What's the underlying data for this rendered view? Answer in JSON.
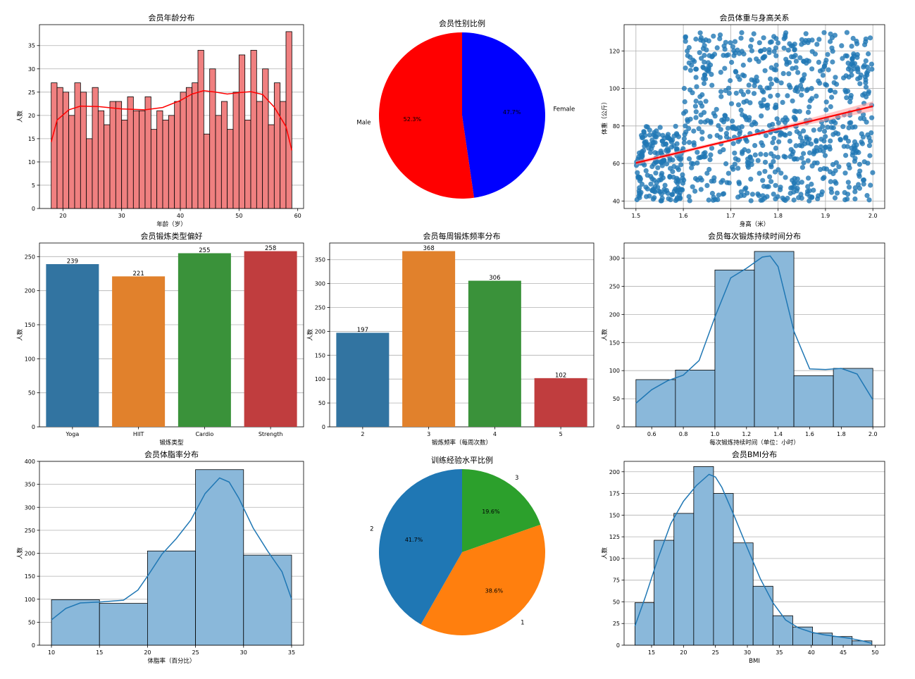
{
  "chart_data": [
    {
      "id": "age",
      "type": "histogram",
      "title": "会员年龄分布",
      "xlabel": "年龄（岁）",
      "ylabel": "人数",
      "xlim": [
        16,
        61
      ],
      "ylim": [
        0,
        39.5
      ],
      "xticks": [
        20,
        30,
        40,
        50,
        60
      ],
      "yticks": [
        0,
        5,
        10,
        15,
        20,
        25,
        30,
        35
      ],
      "grid": "y",
      "bar_color": "#f08080",
      "kde_color": "#ff0000",
      "bins": [
        [
          18,
          19,
          27
        ],
        [
          19,
          20,
          26
        ],
        [
          20,
          21,
          25
        ],
        [
          21,
          22,
          20
        ],
        [
          22,
          23,
          27
        ],
        [
          23,
          24,
          25
        ],
        [
          24,
          25,
          15
        ],
        [
          25,
          26,
          26
        ],
        [
          26,
          27,
          21
        ],
        [
          27,
          28,
          18
        ],
        [
          28,
          29,
          23
        ],
        [
          29,
          30,
          23
        ],
        [
          30,
          31,
          19
        ],
        [
          31,
          32,
          24
        ],
        [
          32,
          33,
          21
        ],
        [
          33,
          34,
          21
        ],
        [
          34,
          35,
          24
        ],
        [
          35,
          36,
          17
        ],
        [
          36,
          37,
          21
        ],
        [
          37,
          38,
          19
        ],
        [
          38,
          39,
          20
        ],
        [
          39,
          40,
          23
        ],
        [
          40,
          41,
          25
        ],
        [
          41,
          42,
          26
        ],
        [
          42,
          43,
          27
        ],
        [
          43,
          44,
          34
        ],
        [
          44,
          45,
          16
        ],
        [
          45,
          46,
          30
        ],
        [
          46,
          47,
          20
        ],
        [
          47,
          48,
          23
        ],
        [
          48,
          49,
          17
        ],
        [
          49,
          50,
          25
        ],
        [
          50,
          51,
          33
        ],
        [
          51,
          52,
          19
        ],
        [
          52,
          53,
          34
        ],
        [
          53,
          54,
          23
        ],
        [
          54,
          55,
          30
        ],
        [
          55,
          56,
          18
        ],
        [
          56,
          57,
          27
        ],
        [
          57,
          58,
          23
        ],
        [
          58,
          59,
          38
        ]
      ],
      "kde": [
        [
          18,
          14.3
        ],
        [
          19,
          19
        ],
        [
          21,
          21.2
        ],
        [
          23,
          22
        ],
        [
          26,
          21.9
        ],
        [
          30,
          21.4
        ],
        [
          34,
          21.2
        ],
        [
          37,
          21.7
        ],
        [
          40,
          23.2
        ],
        [
          42,
          24.6
        ],
        [
          44,
          25.3
        ],
        [
          46,
          25
        ],
        [
          48,
          24.6
        ],
        [
          50,
          24.9
        ],
        [
          52,
          25.1
        ],
        [
          54,
          24.5
        ],
        [
          56,
          21.8
        ],
        [
          58,
          17.6
        ],
        [
          59,
          12.5
        ]
      ]
    },
    {
      "id": "gender",
      "type": "pie",
      "title": "会员性别比例",
      "slices": [
        {
          "label": "Female",
          "pct_label": "47.7%",
          "value": 47.7,
          "color": "#0000ff"
        },
        {
          "label": "Male",
          "pct_label": "52.3%",
          "value": 52.3,
          "color": "#ff0000"
        }
      ],
      "start_angle": 90,
      "direction": "clockwise"
    },
    {
      "id": "weight_height",
      "type": "scatter",
      "title": "会员体重与身高关系",
      "xlabel": "身高（米）",
      "ylabel": "体重（公斤）",
      "xlim": [
        1.475,
        2.025
      ],
      "ylim": [
        36,
        134
      ],
      "xticks": [
        1.5,
        1.6,
        1.7,
        1.8,
        1.9,
        2.0
      ],
      "yticks": [
        40,
        60,
        80,
        100,
        120
      ],
      "grid": "both",
      "point_color": "#1f77b4",
      "point_count": 973,
      "regression_color": "#ff0000",
      "regression": {
        "x": [
          1.5,
          2.0
        ],
        "y": [
          60.3,
          90.5
        ]
      }
    },
    {
      "id": "workout_type",
      "type": "bar",
      "title": "会员锻炼类型偏好",
      "xlabel": "锻炼类型",
      "ylabel": "人数",
      "categories": [
        "Yoga",
        "HIIT",
        "Cardio",
        "Strength"
      ],
      "values": [
        239,
        221,
        255,
        258
      ],
      "data_labels": [
        "239",
        "221",
        "255",
        "258"
      ],
      "colors": [
        "#3274a1",
        "#e1812c",
        "#3a923a",
        "#c03d3e"
      ],
      "ylim": [
        0,
        270
      ],
      "yticks": [
        0,
        50,
        100,
        150,
        200,
        250
      ],
      "grid": "y"
    },
    {
      "id": "frequency",
      "type": "bar",
      "title": "会员每周锻炼频率分布",
      "xlabel": "锻炼频率（每周次数）",
      "ylabel": "人数",
      "categories": [
        "2",
        "3",
        "4",
        "5"
      ],
      "values": [
        197,
        368,
        306,
        102
      ],
      "data_labels": [
        "197",
        "368",
        "306",
        "102"
      ],
      "colors": [
        "#3274a1",
        "#e1812c",
        "#3a923a",
        "#c03d3e"
      ],
      "ylim": [
        0,
        385
      ],
      "yticks": [
        0,
        50,
        100,
        150,
        200,
        250,
        300,
        350
      ],
      "grid": "y"
    },
    {
      "id": "duration",
      "type": "histogram",
      "title": "会员每次锻炼持续时间分布",
      "xlabel": "每次锻炼持续时间（单位：小时）",
      "ylabel": "人数",
      "xlim": [
        0.425,
        2.075
      ],
      "ylim": [
        0,
        327
      ],
      "xticks": [
        0.6,
        0.8,
        1.0,
        1.2,
        1.4,
        1.6,
        1.8,
        2.0
      ],
      "yticks": [
        0,
        50,
        100,
        150,
        200,
        250,
        300
      ],
      "grid": "y",
      "bar_color": "#8ab8da",
      "kde_color": "#1f77b4",
      "bins": [
        [
          0.5,
          0.75,
          84
        ],
        [
          0.75,
          1.0,
          101
        ],
        [
          1.0,
          1.25,
          279
        ],
        [
          1.25,
          1.5,
          312
        ],
        [
          1.5,
          1.75,
          91
        ],
        [
          1.75,
          2.0,
          104
        ]
      ],
      "kde": [
        [
          0.5,
          42
        ],
        [
          0.6,
          66
        ],
        [
          0.7,
          82
        ],
        [
          0.8,
          92
        ],
        [
          0.9,
          118
        ],
        [
          1.0,
          195
        ],
        [
          1.1,
          265
        ],
        [
          1.2,
          282
        ],
        [
          1.3,
          302
        ],
        [
          1.35,
          304
        ],
        [
          1.4,
          285
        ],
        [
          1.5,
          170
        ],
        [
          1.6,
          103
        ],
        [
          1.7,
          102
        ],
        [
          1.8,
          104
        ],
        [
          1.9,
          94
        ],
        [
          2.0,
          48
        ]
      ]
    },
    {
      "id": "fat",
      "type": "histogram",
      "title": "会员体脂率分布",
      "xlabel": "体脂率（百分比）",
      "ylabel": "人数",
      "xlim": [
        8.75,
        36.25
      ],
      "ylim": [
        0,
        400
      ],
      "xticks": [
        10,
        15,
        20,
        25,
        30,
        35
      ],
      "yticks": [
        0,
        50,
        100,
        150,
        200,
        250,
        300,
        350,
        400
      ],
      "grid": "y",
      "bar_color": "#8ab8da",
      "kde_color": "#1f77b4",
      "bins": [
        [
          10,
          15,
          99
        ],
        [
          15,
          20,
          91
        ],
        [
          20,
          25,
          205
        ],
        [
          25,
          30,
          382
        ],
        [
          30,
          35,
          196
        ]
      ],
      "kde": [
        [
          10,
          55
        ],
        [
          11.5,
          80
        ],
        [
          13,
          92
        ],
        [
          15,
          94
        ],
        [
          17.5,
          98
        ],
        [
          19,
          120
        ],
        [
          20,
          150
        ],
        [
          21.5,
          198
        ],
        [
          23,
          232
        ],
        [
          24.5,
          272
        ],
        [
          26,
          330
        ],
        [
          27.5,
          364
        ],
        [
          28.5,
          355
        ],
        [
          29.5,
          320
        ],
        [
          31,
          255
        ],
        [
          32.5,
          205
        ],
        [
          34,
          160
        ],
        [
          35,
          100
        ]
      ]
    },
    {
      "id": "experience",
      "type": "pie",
      "title": "训练经验水平比例",
      "slices": [
        {
          "label": "3",
          "pct_label": "19.6%",
          "value": 19.6,
          "color": "#2ca02c"
        },
        {
          "label": "1",
          "pct_label": "38.6%",
          "value": 38.6,
          "color": "#ff7f0e"
        },
        {
          "label": "2",
          "pct_label": "41.7%",
          "value": 41.7,
          "color": "#1f77b4"
        }
      ],
      "start_angle": 90,
      "direction": "clockwise"
    },
    {
      "id": "bmi",
      "type": "histogram",
      "title": "会员BMI分布",
      "xlabel": "BMI",
      "ylabel": "人数",
      "xlim": [
        10.7,
        51.5
      ],
      "ylim": [
        0,
        212
      ],
      "xticks": [
        15,
        20,
        25,
        30,
        35,
        40,
        45,
        50
      ],
      "yticks": [
        0,
        25,
        50,
        75,
        100,
        125,
        150,
        175,
        200
      ],
      "grid": "y",
      "bar_color": "#8ab8da",
      "kde_color": "#1f77b4",
      "bins": [
        [
          12.4,
          15.4,
          49
        ],
        [
          15.4,
          18.5,
          121
        ],
        [
          18.5,
          21.6,
          152
        ],
        [
          21.6,
          24.7,
          206
        ],
        [
          24.7,
          27.8,
          175
        ],
        [
          27.8,
          30.9,
          118
        ],
        [
          30.9,
          34.0,
          68
        ],
        [
          34.0,
          37.1,
          34
        ],
        [
          37.1,
          40.2,
          21
        ],
        [
          40.2,
          43.3,
          14
        ],
        [
          43.3,
          46.4,
          10
        ],
        [
          46.4,
          49.5,
          5
        ]
      ],
      "kde": [
        [
          12.4,
          22
        ],
        [
          14,
          55
        ],
        [
          16,
          100
        ],
        [
          18,
          140
        ],
        [
          20,
          166
        ],
        [
          22,
          184
        ],
        [
          24,
          197
        ],
        [
          25,
          194
        ],
        [
          26,
          182
        ],
        [
          28,
          148
        ],
        [
          30,
          112
        ],
        [
          32,
          77
        ],
        [
          34,
          49
        ],
        [
          36,
          29
        ],
        [
          38,
          20
        ],
        [
          40,
          15
        ],
        [
          42,
          12
        ],
        [
          44,
          10
        ],
        [
          46,
          8
        ],
        [
          48,
          5
        ],
        [
          49.5,
          2
        ]
      ]
    }
  ]
}
